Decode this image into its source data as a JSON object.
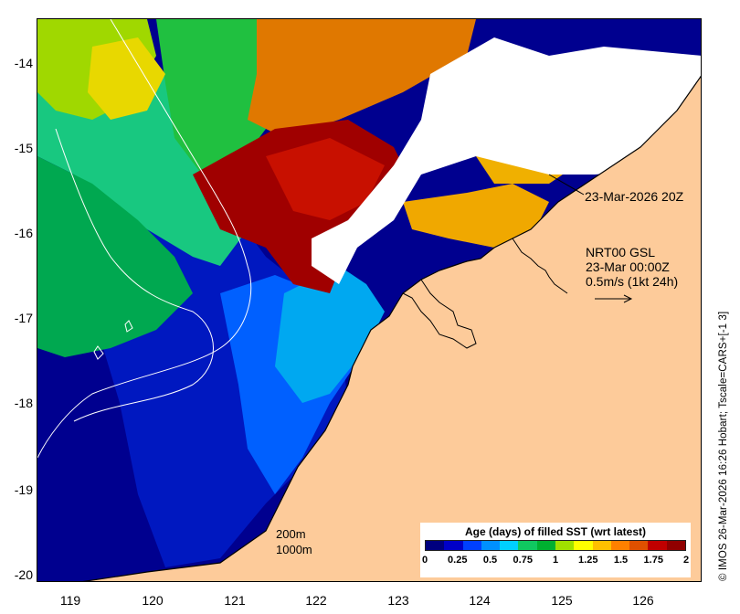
{
  "y_axis": {
    "ticks": [
      "-14",
      "-15",
      "-16",
      "-17",
      "-18",
      "-19",
      "-20"
    ]
  },
  "x_axis": {
    "ticks": [
      "119",
      "120",
      "121",
      "122",
      "123",
      "124",
      "125",
      "126"
    ]
  },
  "annotation_date": "23-Mar-2026 20Z",
  "current_info": {
    "line1": "NRT00 GSL",
    "line2": "23-Mar 00:00Z",
    "line3": "0.5m/s (1kt 24h)"
  },
  "contour_labels": {
    "depth1": "200m",
    "depth2": "1000m"
  },
  "credit": "© IMOS 26-Mar-2026 16:26 Hobart; Tscale=CARS+[-1 3]",
  "legend": {
    "title": "Age (days) of filled SST (wrt latest)",
    "ticks": [
      "0",
      "0.25",
      "0.5",
      "0.75",
      "1",
      "1.25",
      "1.5",
      "1.75",
      "2"
    ],
    "colors": [
      "#00007f",
      "#0000c8",
      "#0040ff",
      "#0090ff",
      "#00d0ff",
      "#10c860",
      "#00b030",
      "#a0e000",
      "#ffff00",
      "#ffc000",
      "#ff8000",
      "#e05000",
      "#c00000",
      "#900000"
    ]
  },
  "colors": {
    "land": "#fdcb9a",
    "no_data": "#ffffff",
    "coast": "#000000",
    "contour": "#ffffff"
  }
}
